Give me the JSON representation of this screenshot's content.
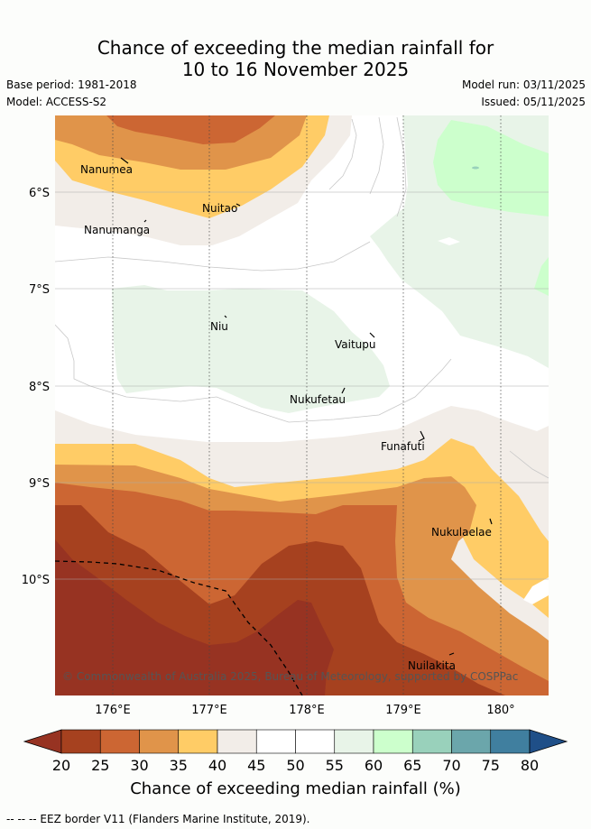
{
  "title": {
    "line1": "Chance of exceeding the median rainfall for",
    "line2": "10 to 16 November 2025"
  },
  "meta": {
    "base_period": "Base period: 1981-2018",
    "model": "Model: ACCESS-S2",
    "model_run": "Model run: 03/11/2025",
    "issued": "Issued: 05/11/2025"
  },
  "map": {
    "lat_labels": [
      "6°S",
      "7°S",
      "8°S",
      "9°S",
      "10°S"
    ],
    "lon_labels": [
      "176°E",
      "177°E",
      "178°E",
      "179°E",
      "180°"
    ],
    "places": [
      "Nanumea",
      "Nuitao",
      "Nanumanga",
      "Niu",
      "Vaitupu",
      "Nukufetau",
      "Funafuti",
      "Nukulaelae",
      "Nuilakita"
    ],
    "copyright": "© Commonwealth of Australia 2025, Bureau of Meteorology, supported by COSPPac"
  },
  "colorbar": {
    "ticks": [
      "20",
      "25",
      "30",
      "35",
      "40",
      "45",
      "50",
      "55",
      "60",
      "65",
      "70",
      "75",
      "80"
    ],
    "colors": [
      "#a6411f",
      "#cc6633",
      "#e0944a",
      "#ffcc66",
      "#f2ede8",
      "#ffffff",
      "#ffffff",
      "#e8f4e8",
      "#ccffcc",
      "#99d1bb",
      "#6ba6ab",
      "#407f9f"
    ],
    "under_color": "#973322",
    "over_color": "#1f4f88",
    "title": "Chance of exceeding median rainfall (%)"
  },
  "footnote": "--  --  -- EEZ border V11 (Flanders Marine Institute, 2019)."
}
